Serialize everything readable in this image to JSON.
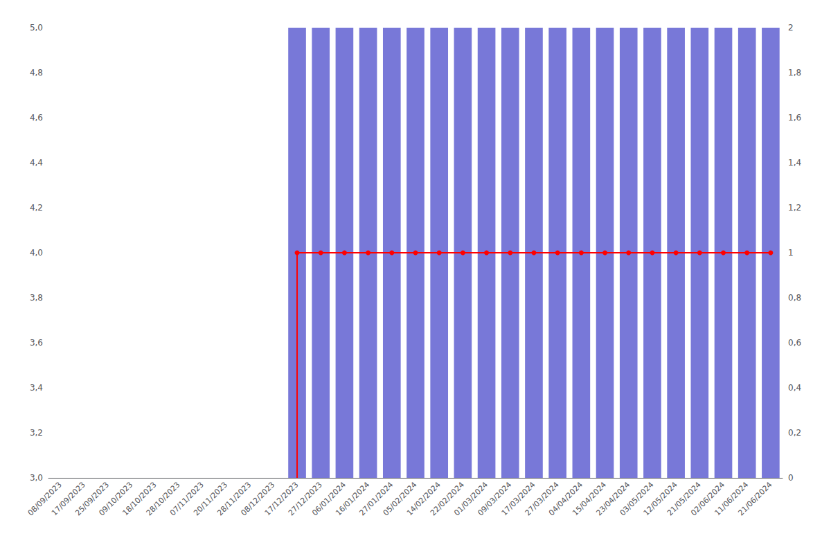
{
  "chart_data": {
    "type": "bar",
    "categories": [
      "08/09/2023",
      "17/09/2023",
      "25/09/2023",
      "09/10/2023",
      "18/10/2023",
      "28/10/2023",
      "07/11/2023",
      "20/11/2023",
      "28/11/2023",
      "08/12/2023",
      "17/12/2023",
      "27/12/2023",
      "06/01/2024",
      "16/01/2024",
      "27/01/2024",
      "05/02/2024",
      "14/02/2024",
      "22/02/2024",
      "01/03/2024",
      "09/03/2024",
      "17/03/2024",
      "27/03/2024",
      "04/04/2024",
      "15/04/2024",
      "23/04/2024",
      "03/05/2024",
      "12/05/2024",
      "21/05/2024",
      "02/06/2024",
      "11/06/2024",
      "21/06/2024"
    ],
    "ylim": [
      3.0,
      5.0
    ],
    "yticks": [
      {
        "value": 3.0,
        "label": "3,0"
      },
      {
        "value": 3.2,
        "label": "3,2"
      },
      {
        "value": 3.4,
        "label": "3,4"
      },
      {
        "value": 3.6,
        "label": "3,6"
      },
      {
        "value": 3.8,
        "label": "3,8"
      },
      {
        "value": 4.0,
        "label": "4,0"
      },
      {
        "value": 4.2,
        "label": "4,2"
      },
      {
        "value": 4.4,
        "label": "4,4"
      },
      {
        "value": 4.6,
        "label": "4,6"
      },
      {
        "value": 4.8,
        "label": "4,8"
      },
      {
        "value": 5.0,
        "label": "5,0"
      }
    ],
    "y2lim": [
      0,
      2.0
    ],
    "y2ticks": [
      0,
      {
        "value": 0.2,
        "label": "0,2"
      },
      {
        "value": 0.4,
        "label": "0,4"
      },
      {
        "value": 0.6,
        "label": "0,6"
      },
      {
        "value": 0.8,
        "label": "0,8"
      },
      1,
      {
        "value": 1.2,
        "label": "1,2"
      },
      {
        "value": 1.4,
        "label": "1,4"
      },
      {
        "value": 1.6,
        "label": "1,6"
      },
      {
        "value": 1.8,
        "label": "1,8"
      },
      2
    ],
    "grid": false,
    "series": [
      {
        "type": "bar",
        "color": "#7878d8",
        "values": [
          null,
          null,
          null,
          null,
          null,
          null,
          null,
          null,
          null,
          null,
          5.0,
          5.0,
          5.0,
          5.0,
          5.0,
          5.0,
          5.0,
          5.0,
          5.0,
          5.0,
          5.0,
          5.0,
          5.0,
          5.0,
          5.0,
          5.0,
          5.0,
          5.0,
          5.0,
          5.0,
          5.0
        ]
      },
      {
        "type": "line",
        "color": "#ff0000",
        "marker": "circle",
        "values": [
          null,
          null,
          null,
          null,
          null,
          null,
          null,
          null,
          null,
          null,
          4.0,
          4.0,
          4.0,
          4.0,
          4.0,
          4.0,
          4.0,
          4.0,
          4.0,
          4.0,
          4.0,
          4.0,
          4.0,
          4.0,
          4.0,
          4.0,
          4.0,
          4.0,
          4.0,
          4.0,
          4.0
        ]
      },
      {
        "type": "line",
        "color": "#ff0000",
        "marker": "none",
        "x": [
          "17/12/2023",
          "17/12/2023"
        ],
        "values": [
          3.0,
          4.0
        ]
      }
    ]
  }
}
